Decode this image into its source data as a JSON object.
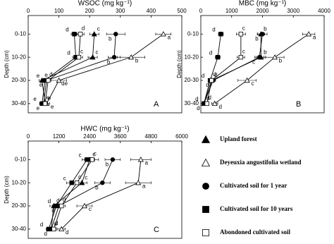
{
  "chart_data": [
    {
      "type": "line",
      "title": "WSOC (mg kg⁻¹)",
      "panel": "A",
      "ylabel": "Depth (cm)",
      "categories": [
        "0-10",
        "10-20",
        "20-30",
        "30-40"
      ],
      "xlim": [
        0,
        500
      ],
      "xticks": [
        0,
        100,
        200,
        300,
        400,
        500
      ],
      "series": [
        {
          "name": "Upland forest",
          "marker": "triangle",
          "fill": "#000",
          "values": [
            215,
            210,
            45,
            55
          ],
          "errors": [
            15,
            15,
            10,
            8
          ],
          "letters": [
            "c",
            "c",
            "e",
            "e"
          ]
        },
        {
          "name": "Deyeuxia angustifolia wetland",
          "marker": "triangle",
          "fill": "#fff",
          "values": [
            440,
            335,
            100,
            60
          ],
          "errors": [
            25,
            45,
            25,
            10
          ],
          "letters": [
            "a",
            "b",
            "de",
            "e"
          ]
        },
        {
          "name": "Cultivated soil for 1 year",
          "marker": "circle",
          "fill": "#000",
          "values": [
            285,
            280,
            60,
            50
          ],
          "errors": [
            30,
            20,
            10,
            8
          ],
          "letters": [
            "b",
            "b",
            "e",
            "e"
          ]
        },
        {
          "name": "Cultivated soil for 10 years",
          "marker": "square",
          "fill": "#000",
          "values": [
            150,
            155,
            55,
            45
          ],
          "errors": [
            10,
            10,
            8,
            8
          ],
          "letters": [
            "d",
            "d",
            "e",
            "e"
          ]
        },
        {
          "name": "Abondoned cultivated soil",
          "marker": "square",
          "fill": "#fff",
          "values": [
            170,
            165,
            65,
            55
          ],
          "errors": [
            12,
            12,
            10,
            8
          ],
          "letters": [
            "d",
            "c",
            "d",
            "e"
          ]
        }
      ]
    },
    {
      "type": "line",
      "title": "MBC (mg kg⁻¹)",
      "panel": "B",
      "ylabel": "Depth (cm)",
      "categories": [
        "0-10",
        "10-20",
        "20-30",
        "30-40"
      ],
      "xlim": [
        0,
        4000
      ],
      "xticks": [
        0,
        1000,
        2000,
        3000,
        4000
      ],
      "series": [
        {
          "name": "Upland forest",
          "marker": "triangle",
          "fill": "#000",
          "values": [
            1950,
            1950,
            350,
            100
          ],
          "errors": [
            120,
            150,
            80,
            40
          ],
          "letters": [
            "b",
            "b",
            "d",
            "d"
          ]
        },
        {
          "name": "Deyeuxia angustifolia wetland",
          "marker": "triangle",
          "fill": "#fff",
          "values": [
            3500,
            2400,
            1500,
            450
          ],
          "errors": [
            200,
            300,
            300,
            100
          ],
          "letters": [
            "a",
            "b",
            "c",
            "d"
          ]
        },
        {
          "name": "Cultivated soil for 1 year",
          "marker": "circle",
          "fill": "#000",
          "values": [
            2000,
            1900,
            400,
            100
          ],
          "errors": [
            150,
            150,
            80,
            40
          ],
          "letters": [
            "b",
            "c",
            "d",
            "d"
          ]
        },
        {
          "name": "Cultivated soil for 10 years",
          "marker": "square",
          "fill": "#000",
          "values": [
            650,
            550,
            300,
            100
          ],
          "errors": [
            80,
            80,
            60,
            30
          ],
          "letters": [
            "d",
            "d",
            "d",
            "d"
          ]
        },
        {
          "name": "Abondoned cultivated soil",
          "marker": "square",
          "fill": "#fff",
          "values": [
            1300,
            1300,
            350,
            200
          ],
          "errors": [
            150,
            120,
            80,
            50
          ],
          "letters": [
            "c",
            "c",
            "d",
            "d"
          ]
        }
      ]
    },
    {
      "type": "line",
      "title": "HWC (mg kg⁻¹)",
      "panel": "C",
      "ylabel": "Depth (cm)",
      "categories": [
        "0-10",
        "10-20",
        "20-30",
        "30-40"
      ],
      "xlim": [
        0,
        6000
      ],
      "xticks": [
        0,
        1200,
        2400,
        3600,
        4800,
        6000
      ],
      "series": [
        {
          "name": "Upland forest",
          "marker": "triangle",
          "fill": "#000",
          "values": [
            2400,
            2100,
            1000,
            900
          ],
          "errors": [
            200,
            200,
            150,
            100
          ],
          "letters": [
            "c",
            "c",
            "d",
            "d"
          ]
        },
        {
          "name": "Deyeuxia angustifolia wetland",
          "marker": "triangle",
          "fill": "#fff",
          "values": [
            4400,
            4300,
            2200,
            1300
          ],
          "errors": [
            400,
            500,
            300,
            150
          ],
          "letters": [
            "a",
            "a",
            "c",
            "d"
          ]
        },
        {
          "name": "Cultivated soil for 1 year",
          "marker": "circle",
          "fill": "#000",
          "values": [
            3300,
            2900,
            1200,
            900
          ],
          "errors": [
            300,
            300,
            150,
            100
          ],
          "letters": [
            "b",
            "b",
            "d",
            "d"
          ]
        },
        {
          "name": "Cultivated soil for 10 years",
          "marker": "square",
          "fill": "#000",
          "values": [
            2300,
            1700,
            1100,
            800
          ],
          "errors": [
            200,
            200,
            150,
            100
          ],
          "letters": [
            "c",
            "c",
            "d",
            "d"
          ]
        },
        {
          "name": "Abondoned cultivated soil",
          "marker": "square",
          "fill": "#fff",
          "values": [
            2500,
            1900,
            1300,
            1000
          ],
          "errors": [
            250,
            200,
            150,
            100
          ],
          "letters": [
            "c",
            "c",
            "d",
            "d"
          ]
        }
      ]
    }
  ]
}
